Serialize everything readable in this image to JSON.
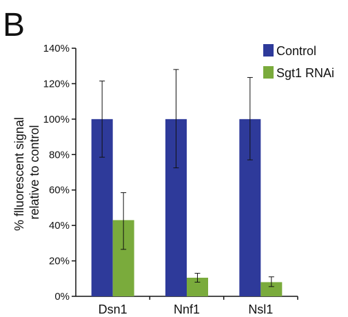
{
  "panel_label": "B",
  "chart_data": {
    "type": "bar",
    "categories": [
      "Dsn1",
      "Nnf1",
      "Nsl1"
    ],
    "series": [
      {
        "name": "Control",
        "color": "#2e3a9a",
        "values": [
          100,
          100,
          100
        ],
        "err_low": [
          78.5,
          72.5,
          77
        ],
        "err_high": [
          121.5,
          128,
          123.5
        ]
      },
      {
        "name": "Sgt1 RNAi",
        "color": "#7aab3c",
        "values": [
          43,
          10.5,
          8
        ],
        "err_low": [
          26.5,
          8,
          5.5
        ],
        "err_high": [
          58.5,
          13,
          11
        ]
      }
    ],
    "ylabel_lines": [
      "% flluorescent signal",
      "relative to control"
    ],
    "ylim": [
      0,
      140
    ],
    "yticks": [
      0,
      20,
      40,
      60,
      80,
      100,
      120,
      140
    ],
    "ytick_labels": [
      "0%",
      "20%",
      "40%",
      "60%",
      "80%",
      "100%",
      "120%",
      "140%"
    ],
    "legend_position": "top-right",
    "grid": false
  }
}
